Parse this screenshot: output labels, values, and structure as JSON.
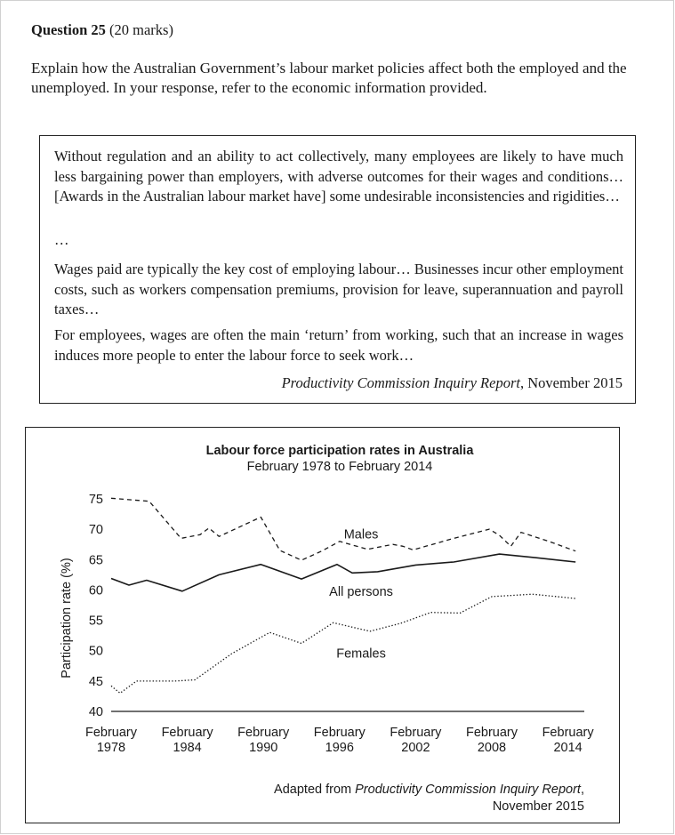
{
  "question": {
    "number_label": "Question 25",
    "marks": "(20 marks)",
    "prompt": "Explain how the Australian Government’s labour market policies affect both the employed and the unemployed. In your response, refer to the economic information provided."
  },
  "source_extract": {
    "paragraph_1": "Without regulation and an ability to act collectively, many employees are likely to have much less bargaining power than employers, with adverse outcomes for their wages and conditions… [Awards in the Australian labour market have] some undesirable inconsistencies and rigidities…",
    "ellipsis": "…",
    "paragraph_2": "Wages paid are typically the key cost of employing labour… Businesses incur other employment costs, such as workers compensation premiums, provision for leave, superannuation and payroll taxes…",
    "paragraph_3": "For employees, wages are often the main ‘return’ from working, such that an increase in wages induces more people to enter the labour force to seek work…",
    "citation_title": "Productivity Commission Inquiry Report",
    "citation_date": ", November 2015"
  },
  "chart_data": {
    "type": "line",
    "title": "Labour force participation rates in Australia",
    "subtitle": "February 1978 to February 2014",
    "ylabel": "Participation rate (%)",
    "xlabel": "",
    "ylim": [
      40,
      75
    ],
    "xlim": [
      1978,
      2015.5
    ],
    "y_ticks": [
      75,
      70,
      65,
      60,
      55,
      50,
      45,
      40
    ],
    "x_ticks": [
      {
        "year": 1978,
        "line1": "February",
        "line2": "1978"
      },
      {
        "year": 1984,
        "line1": "February",
        "line2": "1984"
      },
      {
        "year": 1990,
        "line1": "February",
        "line2": "1990"
      },
      {
        "year": 1996,
        "line1": "February",
        "line2": "1996"
      },
      {
        "year": 2002,
        "line1": "February",
        "line2": "2002"
      },
      {
        "year": 2008,
        "line1": "February",
        "line2": "2008"
      },
      {
        "year": 2014,
        "line1": "February",
        "line2": "2014"
      }
    ],
    "grid": false,
    "series": [
      {
        "name": "Males",
        "style": "dashed",
        "x": [
          1978,
          1981,
          1983.5,
          1985,
          1985.7,
          1986.5,
          1989.8,
          1991.3,
          1993,
          1994.6,
          1996,
          1998.2,
          2000.2,
          2001,
          2001.8,
          2002.8,
          2005,
          2007.8,
          2008.6,
          2009.5,
          2010.3,
          2012.5,
          2014.6
        ],
        "values": [
          75.1,
          74.6,
          68.5,
          69.1,
          70.2,
          68.8,
          72.0,
          66.5,
          64.9,
          66.4,
          68.0,
          66.7,
          67.5,
          67.2,
          66.6,
          67.2,
          68.5,
          70.0,
          69.0,
          67.2,
          69.5,
          68.0,
          66.4
        ]
      },
      {
        "name": "All persons",
        "style": "solid",
        "x": [
          1978,
          1979.4,
          1980.8,
          1983.6,
          1986.5,
          1989.8,
          1993,
          1995.8,
          1997,
          1999,
          2002,
          2005,
          2008.6,
          2011.5,
          2014.6
        ],
        "values": [
          61.9,
          60.8,
          61.6,
          59.8,
          62.5,
          64.2,
          61.8,
          64.2,
          62.8,
          63.0,
          64.1,
          64.6,
          65.9,
          65.3,
          64.6
        ]
      },
      {
        "name": "Females",
        "style": "dotted",
        "x": [
          1978,
          1978.7,
          1980,
          1983,
          1984.6,
          1987.5,
          1990.5,
          1993,
          1995.5,
          1998.4,
          2000.8,
          2003.2,
          2005.5,
          2008,
          2011.2,
          2014.6
        ],
        "values": [
          44.2,
          43.0,
          45.0,
          45.0,
          45.2,
          49.5,
          53.0,
          51.2,
          54.6,
          53.2,
          54.5,
          56.3,
          56.2,
          58.9,
          59.3,
          58.6
        ]
      }
    ],
    "annotations": [
      {
        "text": "Males",
        "x": 1997.7,
        "y": 69.2
      },
      {
        "text": "All persons",
        "x": 1997.7,
        "y": 59.8
      },
      {
        "text": "Females",
        "x": 1997.7,
        "y": 49.6
      }
    ],
    "source_prefix": "Adapted from ",
    "source_title": "Productivity Commission Inquiry Report",
    "source_date": "November 2015"
  }
}
